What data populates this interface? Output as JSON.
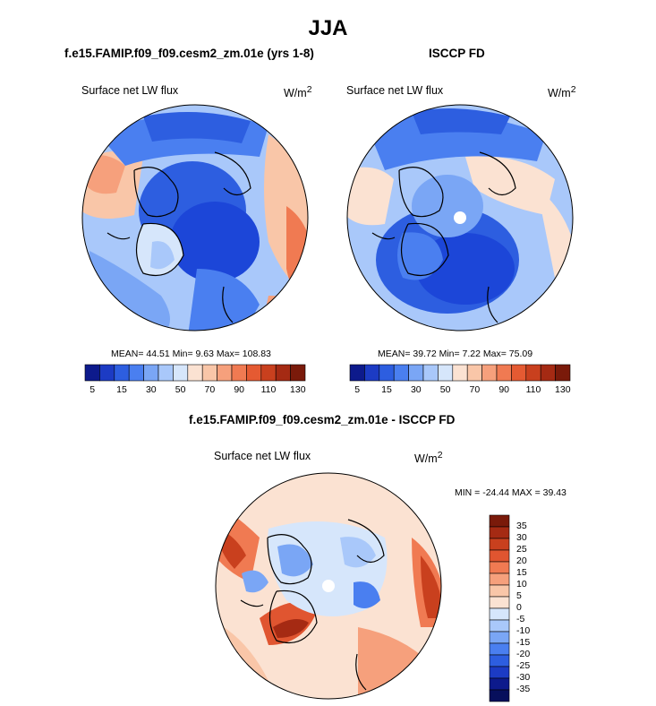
{
  "main_title": "JJA",
  "panel_left": {
    "title": "f.e15.FAMIP.f09_f09.cesm2_zm.01e (yrs 1-8)",
    "variable": "Surface net LW flux",
    "units": "W/m",
    "units_sup": "2",
    "stats": "MEAN=  44.51  Min=    9.63  Max= 108.83"
  },
  "panel_right": {
    "title": "ISCCP FD",
    "variable": "Surface net LW flux",
    "units": "W/m",
    "units_sup": "2",
    "stats": "MEAN=  39.72  Min=    7.22  Max=  75.09"
  },
  "panel_diff": {
    "title": "f.e15.FAMIP.f09_f09.cesm2_zm.01e - ISCCP FD",
    "variable": "Surface net LW flux",
    "units": "W/m",
    "units_sup": "2",
    "stats": "MIN = -24.44 MAX =  39.43"
  },
  "colorbar_abs": {
    "labels": [
      "5",
      "15",
      "30",
      "50",
      "70",
      "90",
      "110",
      "130"
    ],
    "colors": [
      "#0d1a8c",
      "#1c3bc4",
      "#2d5ee0",
      "#4a7ff0",
      "#7aa6f5",
      "#a9c8fa",
      "#d6e6fb",
      "#fbe2d2",
      "#f9c6a8",
      "#f6a07c",
      "#f07a52",
      "#e55a32",
      "#c9401e",
      "#a52a13",
      "#7a1a0a"
    ]
  },
  "colorbar_diff": {
    "labels": [
      "35",
      "30",
      "25",
      "20",
      "15",
      "10",
      "5",
      "0",
      "-5",
      "-10",
      "-15",
      "-20",
      "-25",
      "-30",
      "-35"
    ],
    "colors": [
      "#7a1a0a",
      "#a52a13",
      "#c9401e",
      "#e05530",
      "#f07a52",
      "#f6a07c",
      "#f9c6a8",
      "#fbe2d2",
      "#d6e6fb",
      "#a9c8fa",
      "#7aa6f5",
      "#4a7ff0",
      "#2d5ee0",
      "#1c3bc4",
      "#0d1a8c",
      "#070f5c"
    ]
  },
  "colors": {
    "deep_blue": "#1c46d8",
    "mid_blue": "#4a7ff0",
    "light_blue": "#a9c8fa",
    "pale": "#e8eefb",
    "peach": "#f9c6a8",
    "orange": "#f07a52",
    "red": "#c9401e"
  }
}
